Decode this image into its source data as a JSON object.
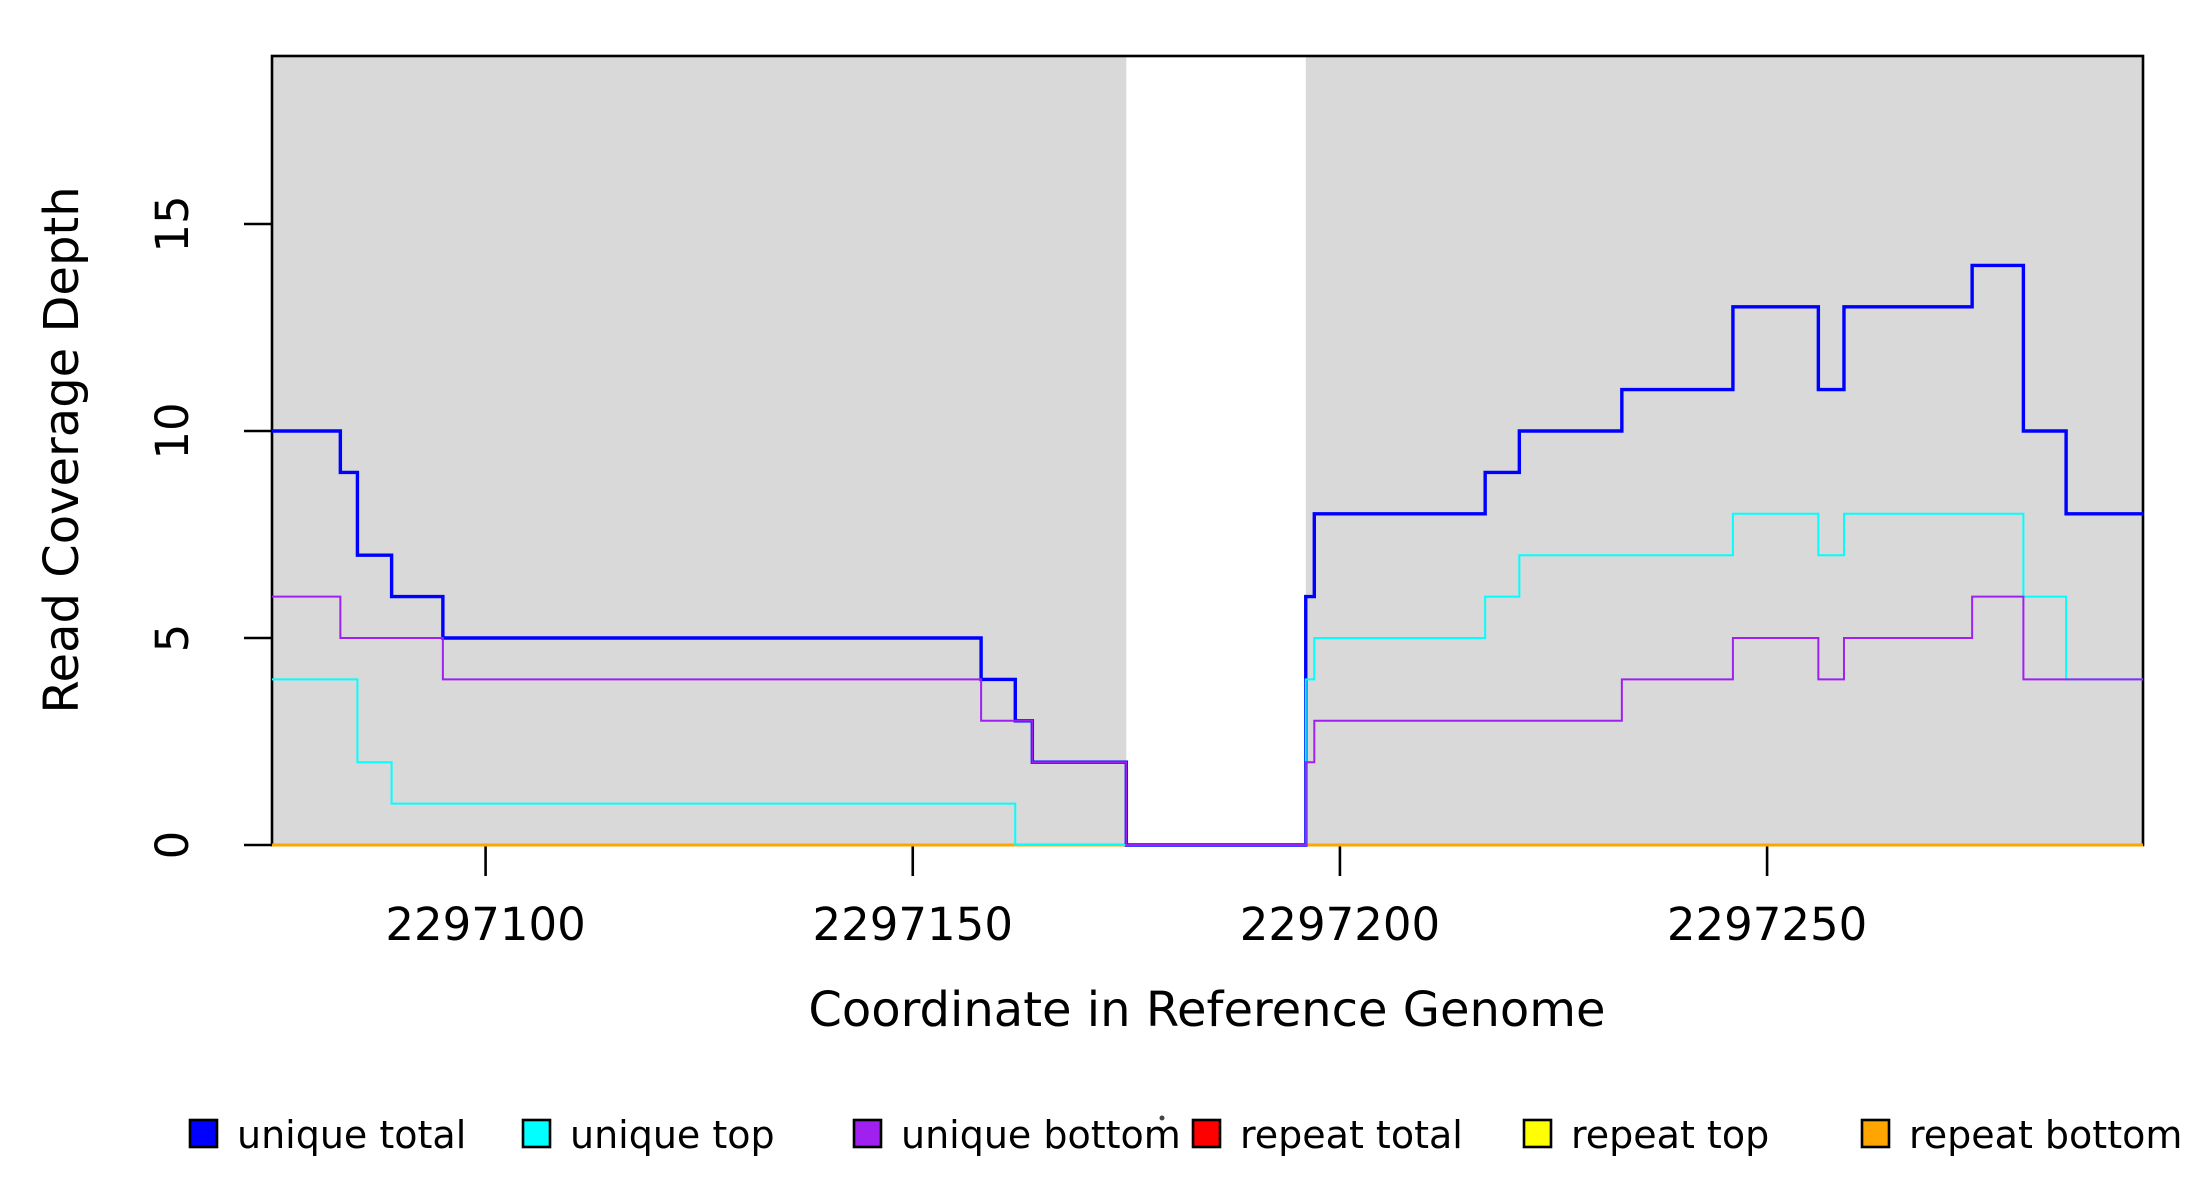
{
  "chart_data": {
    "type": "line",
    "subtype": "step-coverage-plot",
    "title": "",
    "xlabel": "Coordinate in Reference Genome",
    "ylabel": "Read Coverage Depth",
    "x_domain": [
      2297075,
      2297294
    ],
    "y_domain": [
      0,
      19
    ],
    "x_ticks": [
      "2297100",
      "2297150",
      "2297200",
      "2297250"
    ],
    "x_tick_values": [
      2297100,
      2297150,
      2297200,
      2297250
    ],
    "y_ticks": [
      "0",
      "5",
      "10",
      "15"
    ],
    "y_tick_values": [
      0,
      5,
      10,
      15
    ],
    "grid": "off",
    "background_shading": {
      "color": "#D9D9D9",
      "regions": [
        [
          2297075,
          2297175
        ],
        [
          2297196,
          2297294
        ]
      ],
      "gap_region": [
        2297175,
        2297196
      ]
    },
    "series": [
      {
        "name": "repeat total",
        "color": "#FF0000",
        "line_width": 2.5,
        "step_points": [
          [
            2297075,
            0
          ]
        ]
      },
      {
        "name": "repeat top",
        "color": "#FFFF00",
        "line_width": 2.5,
        "step_points": [
          [
            2297075,
            0
          ]
        ]
      },
      {
        "name": "repeat bottom",
        "color": "#FFA500",
        "line_width": 3,
        "step_points": [
          [
            2297075,
            0
          ]
        ]
      },
      {
        "name": "unique total",
        "color": "#0000FF",
        "line_width": 3.4,
        "step_points": [
          [
            2297075,
            10
          ],
          [
            2297083,
            9
          ],
          [
            2297085,
            7
          ],
          [
            2297089,
            6
          ],
          [
            2297095,
            5
          ],
          [
            2297158,
            4
          ],
          [
            2297162,
            3
          ],
          [
            2297164,
            2
          ],
          [
            2297175,
            0
          ],
          [
            2297196,
            6
          ],
          [
            2297197,
            8
          ],
          [
            2297217,
            9
          ],
          [
            2297221,
            10
          ],
          [
            2297233,
            11
          ],
          [
            2297246,
            13
          ],
          [
            2297256,
            11
          ],
          [
            2297259,
            13
          ],
          [
            2297274,
            14
          ],
          [
            2297280,
            10
          ],
          [
            2297285,
            8
          ]
        ]
      },
      {
        "name": "unique top",
        "color": "#00FFFF",
        "line_width": 2,
        "step_points": [
          [
            2297075,
            4
          ],
          [
            2297085,
            2
          ],
          [
            2297089,
            1
          ],
          [
            2297162,
            0
          ],
          [
            2297196,
            4
          ],
          [
            2297197,
            5
          ],
          [
            2297217,
            6
          ],
          [
            2297221,
            7
          ],
          [
            2297246,
            8
          ],
          [
            2297256,
            7
          ],
          [
            2297259,
            8
          ],
          [
            2297280,
            6
          ],
          [
            2297285,
            4
          ]
        ]
      },
      {
        "name": "unique bottom",
        "color": "#A020F0",
        "line_width": 2,
        "step_points": [
          [
            2297075,
            6
          ],
          [
            2297083,
            5
          ],
          [
            2297095,
            4
          ],
          [
            2297158,
            3
          ],
          [
            2297164,
            2
          ],
          [
            2297175,
            0
          ],
          [
            2297196,
            2
          ],
          [
            2297197,
            3
          ],
          [
            2297233,
            4
          ],
          [
            2297246,
            5
          ],
          [
            2297256,
            4
          ],
          [
            2297259,
            5
          ],
          [
            2297274,
            6
          ],
          [
            2297280,
            4
          ]
        ]
      }
    ],
    "legend": {
      "position": "bottom",
      "entries": [
        {
          "label": "unique total",
          "color": "#0000FF"
        },
        {
          "label": "unique top",
          "color": "#00FFFF"
        },
        {
          "label": "unique bottom",
          "color": "#A020F0"
        },
        {
          "label": "repeat total",
          "color": "#FF0000"
        },
        {
          "label": "repeat top",
          "color": "#FFFF00"
        },
        {
          "label": "repeat bottom",
          "color": "#FFA500"
        }
      ],
      "stray_mark": "."
    }
  }
}
